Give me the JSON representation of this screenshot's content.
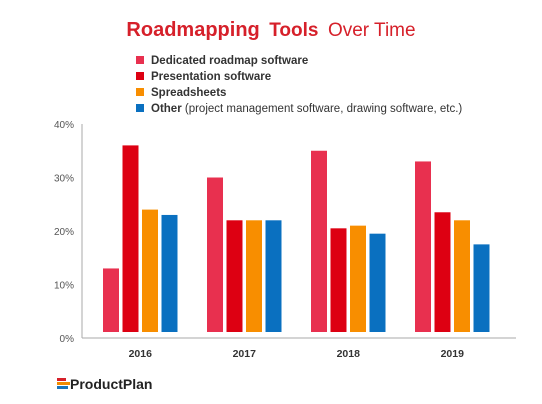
{
  "title": {
    "part1": "Roadmapping",
    "part2": "Tools",
    "part3": "Over Time"
  },
  "colors": {
    "title": "#d6202a",
    "axis": "#aaaaaa",
    "logo_red": "#d6202a",
    "logo_orange": "#f28b00",
    "logo_blue": "#1b75bb"
  },
  "legend": [
    {
      "label_bold": "Dedicated roadmap software",
      "label_rest": ""
    },
    {
      "label_bold": "Presentation software",
      "label_rest": ""
    },
    {
      "label_bold": "Spreadsheets",
      "label_rest": ""
    },
    {
      "label_bold": "Other",
      "label_rest": " (project management software, drawing software, etc.)"
    }
  ],
  "brand": {
    "name": "ProductPlan"
  },
  "chart_data": {
    "type": "bar",
    "categories": [
      "2016",
      "2017",
      "2018",
      "2019"
    ],
    "ylim": [
      0,
      40
    ],
    "yticks": [
      0,
      10,
      20,
      30,
      40
    ],
    "ytick_labels": [
      "0%",
      "10%",
      "20%",
      "30%",
      "40%"
    ],
    "grid": false,
    "legend_position": "top",
    "series": [
      {
        "name": "Dedicated roadmap software",
        "color": "#e8304f",
        "values": [
          13,
          30,
          35,
          33
        ]
      },
      {
        "name": "Presentation software",
        "color": "#dd0012",
        "values": [
          36,
          22,
          20.5,
          23.5
        ]
      },
      {
        "name": "Spreadsheets",
        "color": "#f88e00",
        "values": [
          24,
          22,
          21,
          22
        ]
      },
      {
        "name": "Other",
        "color": "#0a70c0",
        "values": [
          23,
          22,
          19.5,
          17.5
        ]
      }
    ]
  }
}
